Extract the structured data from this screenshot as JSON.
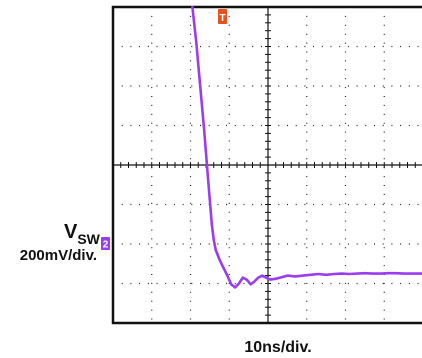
{
  "chart_data": {
    "type": "line",
    "title": "",
    "xlabel": "10ns/div.",
    "channel": {
      "name": "V",
      "subscript": "SW",
      "scale": "200mV/div.",
      "marker": "2"
    },
    "trigger_marker": "T",
    "trace_color": "#9a3cf0",
    "trigger_color": "#e8501e",
    "grid": true,
    "divisions": {
      "x": 8,
      "y": 8
    },
    "x_unit": "div",
    "y_unit": "div",
    "xlim": [
      0,
      8
    ],
    "ylim": [
      0,
      8
    ],
    "series": [
      {
        "x": [
          2.05,
          2.15,
          2.25,
          2.35,
          2.45,
          2.55,
          2.6,
          2.65,
          2.75,
          2.85,
          2.95,
          3.05,
          3.15,
          3.25,
          3.35,
          3.45,
          3.55,
          3.65,
          3.75,
          3.85,
          3.95,
          4.05,
          4.2,
          4.35,
          4.5,
          4.7,
          4.9,
          5.1,
          5.3,
          5.5,
          5.7,
          5.9,
          6.1,
          6.3,
          6.5,
          6.7,
          6.9,
          7.1,
          7.3,
          7.5,
          7.7,
          7.9,
          8.0
        ],
        "y": [
          8.0,
          7.1,
          6.0,
          4.9,
          3.7,
          2.5,
          2.1,
          1.85,
          1.6,
          1.4,
          1.2,
          0.98,
          0.9,
          1.0,
          1.15,
          1.1,
          0.98,
          1.05,
          1.15,
          1.2,
          1.15,
          1.1,
          1.12,
          1.16,
          1.2,
          1.18,
          1.2,
          1.22,
          1.24,
          1.22,
          1.24,
          1.25,
          1.24,
          1.25,
          1.26,
          1.25,
          1.25,
          1.26,
          1.26,
          1.25,
          1.25,
          1.25,
          1.25
        ]
      }
    ]
  }
}
